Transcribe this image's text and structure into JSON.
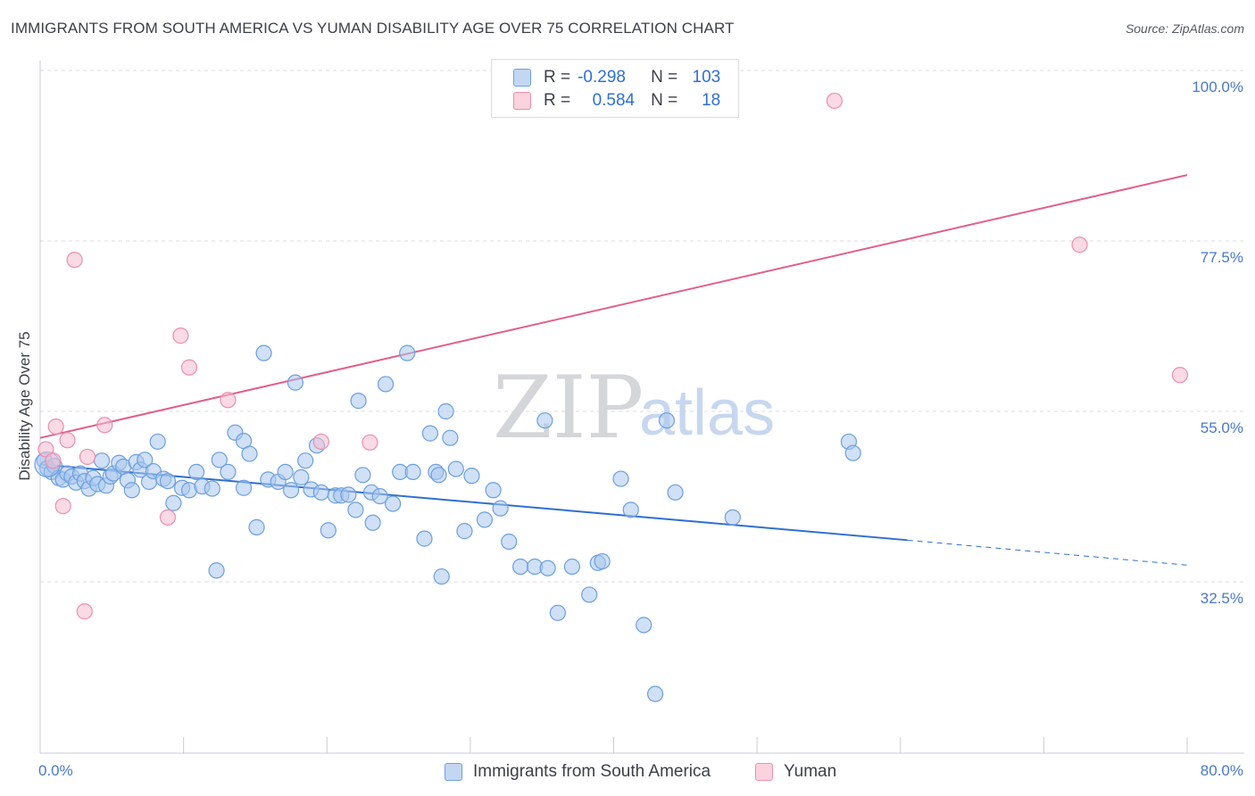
{
  "title": "IMMIGRANTS FROM SOUTH AMERICA VS YUMAN DISABILITY AGE OVER 75 CORRELATION CHART",
  "source": "Source: ZipAtlas.com",
  "legend": {
    "rows": [
      {
        "r_label": "R =",
        "r_value": "-0.298",
        "n_label": "N =",
        "n_value": "103"
      },
      {
        "r_label": "R =",
        "r_value": "0.584",
        "n_label": "N =",
        "n_value": "18"
      }
    ]
  },
  "bottom_legend": [
    "Immigrants from South America",
    "Yuman"
  ],
  "watermark": {
    "zip": "ZIP",
    "atlas": "atlas"
  },
  "colors": {
    "blue_fill": "#a9c6ef",
    "blue_stroke": "#6b9fe0",
    "blue_line": "#2f6fd0",
    "pink_fill": "#f6bccd",
    "pink_stroke": "#ec8fab",
    "pink_line": "#e0608a",
    "grid": "#d9dde3",
    "tick_text": "#4a78c8"
  },
  "chart_data": {
    "type": "scatter",
    "title": "IMMIGRANTS FROM SOUTH AMERICA VS YUMAN DISABILITY AGE OVER 75 CORRELATION CHART",
    "xlabel": "",
    "ylabel": "Disability Age Over 75",
    "xlim": [
      0,
      80
    ],
    "ylim": [
      10,
      102
    ],
    "x_tick_labels": [
      {
        "value": 0,
        "label": "0.0%"
      },
      {
        "value": 80,
        "label": "80.0%"
      }
    ],
    "y_tick_labels": [
      {
        "value": 32.5,
        "label": "32.5%"
      },
      {
        "value": 55.0,
        "label": "55.0%"
      },
      {
        "value": 77.5,
        "label": "77.5%"
      },
      {
        "value": 100.0,
        "label": "100.0%"
      }
    ],
    "series": [
      {
        "name": "Immigrants from South America",
        "color": "#6b9fe0",
        "points": [
          [
            0.3,
            48.5
          ],
          [
            0.5,
            47.5
          ],
          [
            0.8,
            47.0
          ],
          [
            1.0,
            47.8
          ],
          [
            1.3,
            46.2
          ],
          [
            1.6,
            46.0
          ],
          [
            1.9,
            46.8
          ],
          [
            2.2,
            46.4
          ],
          [
            2.5,
            45.6
          ],
          [
            2.8,
            46.8
          ],
          [
            3.1,
            45.8
          ],
          [
            3.4,
            44.8
          ],
          [
            3.7,
            46.2
          ],
          [
            4.0,
            45.4
          ],
          [
            4.3,
            48.5
          ],
          [
            4.6,
            45.2
          ],
          [
            4.9,
            46.4
          ],
          [
            5.1,
            46.8
          ],
          [
            5.5,
            48.2
          ],
          [
            5.8,
            47.7
          ],
          [
            6.1,
            45.9
          ],
          [
            6.4,
            44.6
          ],
          [
            6.7,
            48.3
          ],
          [
            7.0,
            47.3
          ],
          [
            7.3,
            48.6
          ],
          [
            7.6,
            45.7
          ],
          [
            7.9,
            47.1
          ],
          [
            8.2,
            51.0
          ],
          [
            8.6,
            46.1
          ],
          [
            8.9,
            45.8
          ],
          [
            9.3,
            42.9
          ],
          [
            9.9,
            44.9
          ],
          [
            10.4,
            44.6
          ],
          [
            10.9,
            47.0
          ],
          [
            11.3,
            45.1
          ],
          [
            12.0,
            44.8
          ],
          [
            12.5,
            48.6
          ],
          [
            13.1,
            47.0
          ],
          [
            13.6,
            52.2
          ],
          [
            14.2,
            51.1
          ],
          [
            14.6,
            49.4
          ],
          [
            15.1,
            39.7
          ],
          [
            15.6,
            62.7
          ],
          [
            15.9,
            46.0
          ],
          [
            16.6,
            45.7
          ],
          [
            17.1,
            47.0
          ],
          [
            17.5,
            44.6
          ],
          [
            17.8,
            58.8
          ],
          [
            18.2,
            46.3
          ],
          [
            18.5,
            48.5
          ],
          [
            18.9,
            44.7
          ],
          [
            19.3,
            50.5
          ],
          [
            19.6,
            44.3
          ],
          [
            20.1,
            39.3
          ],
          [
            20.6,
            43.9
          ],
          [
            21.0,
            43.9
          ],
          [
            21.5,
            44.0
          ],
          [
            22.0,
            42.0
          ],
          [
            22.2,
            56.4
          ],
          [
            22.5,
            46.6
          ],
          [
            23.1,
            44.3
          ],
          [
            23.7,
            43.8
          ],
          [
            24.1,
            58.6
          ],
          [
            24.6,
            42.8
          ],
          [
            25.1,
            47.0
          ],
          [
            25.6,
            62.7
          ],
          [
            26.0,
            47.0
          ],
          [
            26.8,
            38.2
          ],
          [
            27.2,
            52.1
          ],
          [
            27.6,
            47.0
          ],
          [
            28.0,
            33.2
          ],
          [
            28.3,
            55.0
          ],
          [
            28.6,
            51.5
          ],
          [
            29.0,
            47.4
          ],
          [
            29.6,
            39.2
          ],
          [
            30.1,
            46.5
          ],
          [
            31.0,
            40.7
          ],
          [
            31.6,
            44.6
          ],
          [
            32.1,
            42.2
          ],
          [
            32.7,
            37.8
          ],
          [
            33.5,
            34.5
          ],
          [
            34.5,
            34.5
          ],
          [
            35.2,
            53.8
          ],
          [
            36.1,
            28.4
          ],
          [
            37.1,
            34.5
          ],
          [
            38.3,
            30.8
          ],
          [
            38.9,
            35.0
          ],
          [
            39.2,
            35.2
          ],
          [
            40.5,
            46.1
          ],
          [
            41.2,
            42.0
          ],
          [
            42.1,
            26.8
          ],
          [
            42.9,
            17.7
          ],
          [
            43.7,
            53.8
          ],
          [
            44.3,
            44.3
          ],
          [
            48.3,
            41.0
          ],
          [
            56.4,
            51.0
          ],
          [
            56.7,
            49.5
          ],
          [
            12.3,
            34.0
          ],
          [
            14.2,
            44.9
          ],
          [
            23.2,
            40.3
          ],
          [
            27.8,
            46.6
          ],
          [
            35.4,
            34.3
          ]
        ],
        "trend_line": {
          "x": [
            0,
            60.5
          ],
          "y": [
            48.0,
            38.0
          ]
        },
        "trend_dashed": {
          "x": [
            60.5,
            80
          ],
          "y": [
            38.0,
            34.7
          ]
        }
      },
      {
        "name": "Yuman",
        "color": "#ec8fab",
        "points": [
          [
            0.4,
            50.0
          ],
          [
            0.9,
            48.5
          ],
          [
            1.1,
            53.0
          ],
          [
            1.6,
            42.5
          ],
          [
            1.9,
            51.2
          ],
          [
            2.4,
            75.0
          ],
          [
            3.1,
            28.6
          ],
          [
            3.3,
            49.0
          ],
          [
            4.5,
            53.2
          ],
          [
            8.9,
            41.0
          ],
          [
            9.8,
            65.0
          ],
          [
            10.4,
            60.8
          ],
          [
            13.1,
            56.5
          ],
          [
            19.6,
            51.0
          ],
          [
            23.0,
            50.9
          ],
          [
            55.4,
            96.0
          ],
          [
            72.5,
            77.0
          ],
          [
            79.5,
            59.8
          ]
        ],
        "trend_line": {
          "x": [
            0,
            80
          ],
          "y": [
            51.5,
            86.2
          ]
        }
      }
    ]
  }
}
